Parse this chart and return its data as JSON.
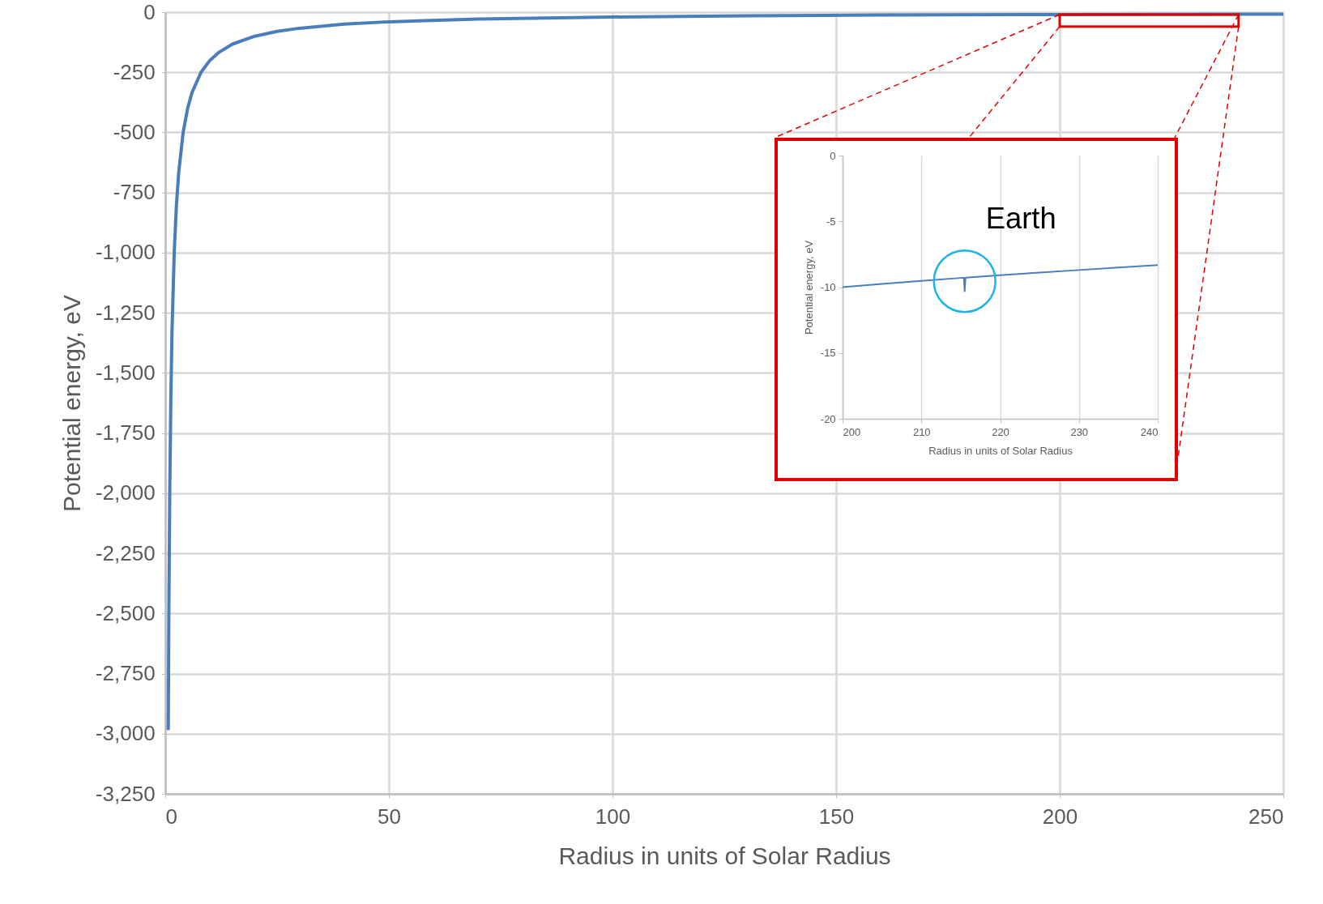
{
  "chart_data": [
    {
      "type": "line",
      "xlabel": "Radius in units of Solar Radius",
      "ylabel": "Potential energy, eV",
      "xlim": [
        0,
        250
      ],
      "xticks": [
        0,
        50,
        100,
        150,
        200,
        250
      ],
      "ylim": [
        -3250,
        0
      ],
      "yticks": [
        {
          "value": -3250,
          "label": "-3,250"
        },
        {
          "value": -3000,
          "label": "-3,000"
        },
        {
          "value": -2750,
          "label": "-2,750"
        },
        {
          "value": -2500,
          "label": "-2,500"
        },
        {
          "value": -2250,
          "label": "-2,250"
        },
        {
          "value": -2000,
          "label": "-2,000"
        },
        {
          "value": -1750,
          "label": "-1,750"
        },
        {
          "value": -1500,
          "label": "-1,500"
        },
        {
          "value": -1250,
          "label": "-1,250"
        },
        {
          "value": -1000,
          "label": "-1,000"
        },
        -750,
        -500,
        -250,
        0
      ],
      "grid": true,
      "marker": "none",
      "line_style": "solid",
      "series": [
        {
          "color": "#4a7ebb",
          "x": [
            0.67,
            0.8,
            1,
            1.25,
            1.5,
            2,
            2.5,
            3,
            4,
            5,
            6,
            8,
            10,
            12,
            15,
            20,
            25,
            30,
            40,
            50,
            70,
            100,
            130,
            160,
            200,
            250
          ],
          "values": [
            -2985,
            -2500,
            -2000,
            -1600,
            -1333,
            -1000,
            -800,
            -667,
            -500,
            -400,
            -333,
            -250,
            -200,
            -167,
            -133,
            -100,
            -80,
            -67,
            -50,
            -40,
            -29,
            -20,
            -15,
            -12,
            -10,
            -8
          ]
        }
      ]
    },
    {
      "type": "line",
      "xlabel": "Radius in units of Solar Radius",
      "ylabel": "Potential energy, eV",
      "xlim": [
        200,
        240
      ],
      "xticks": [
        200,
        210,
        220,
        230,
        240
      ],
      "ylim": [
        -20,
        0
      ],
      "yticks": [
        -20,
        -15,
        -10,
        -5,
        0
      ],
      "grid": "x",
      "marker": "none",
      "line_style": "solid",
      "annotations": [
        {
          "text": "Earth",
          "x": 215.5,
          "y": -9.3
        }
      ],
      "series": [
        {
          "color": "#4a7ebb",
          "x": [
            200,
            205,
            210,
            215,
            215.4,
            215.5,
            215.6,
            216,
            220,
            225,
            230,
            235,
            240
          ],
          "values": [
            -10,
            -9.76,
            -9.52,
            -9.3,
            -9.29,
            -10.3,
            -9.29,
            -9.26,
            -9.09,
            -8.89,
            -8.7,
            -8.51,
            -8.33
          ]
        }
      ]
    }
  ]
}
